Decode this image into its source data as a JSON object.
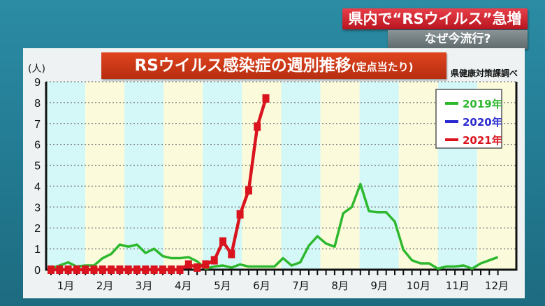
{
  "headline": "県内で“RSウイルス”急増",
  "subheadline": "なぜ今流行?",
  "source": "県健康対策課調べ",
  "chart_data": {
    "type": "line",
    "title": "RSウイルス感染症の週別推移",
    "title_suffix": "(定点当たり)",
    "ylabel": "(人)",
    "ylim": [
      0,
      9
    ],
    "yticks": [
      "0",
      "1",
      "2",
      "3",
      "4",
      "5",
      "6",
      "7",
      "8",
      "9"
    ],
    "x_month_labels": [
      "1月",
      "2月",
      "3月",
      "4月",
      "5月",
      "6月",
      "7月",
      "8月",
      "9月",
      "10月",
      "11月",
      "12月"
    ],
    "x_unit": "week",
    "grid": true,
    "legend_position": "top-right",
    "series": [
      {
        "name": "2019年",
        "color": "#2eb82e",
        "values": [
          0.05,
          0.2,
          0.35,
          0.15,
          0.2,
          0.2,
          0.55,
          0.75,
          1.2,
          1.1,
          1.2,
          0.8,
          1.0,
          0.65,
          0.55,
          0.55,
          0.6,
          0.4,
          0.05,
          0.15,
          0.2,
          0.1,
          0.25,
          0.15,
          0.15,
          0.15,
          0.15,
          0.55,
          0.2,
          0.35,
          1.15,
          1.6,
          1.25,
          1.1,
          2.7,
          3.0,
          4.1,
          2.8,
          2.75,
          2.75,
          2.3,
          0.95,
          0.45,
          0.3,
          0.3,
          0.05,
          0.15,
          0.15,
          0.2,
          0.05,
          0.3,
          0.45,
          0.6
        ]
      },
      {
        "name": "2020年",
        "color": "#2a2ad0",
        "values": []
      },
      {
        "name": "2021年",
        "color": "#d9141e",
        "values": [
          0,
          0,
          0,
          0,
          0,
          0,
          0,
          0,
          0,
          0,
          0,
          0,
          0,
          0,
          0,
          0,
          0.25,
          0.1,
          0.25,
          0.45,
          1.35,
          0.75,
          2.65,
          3.8,
          6.85,
          8.2
        ]
      }
    ]
  }
}
